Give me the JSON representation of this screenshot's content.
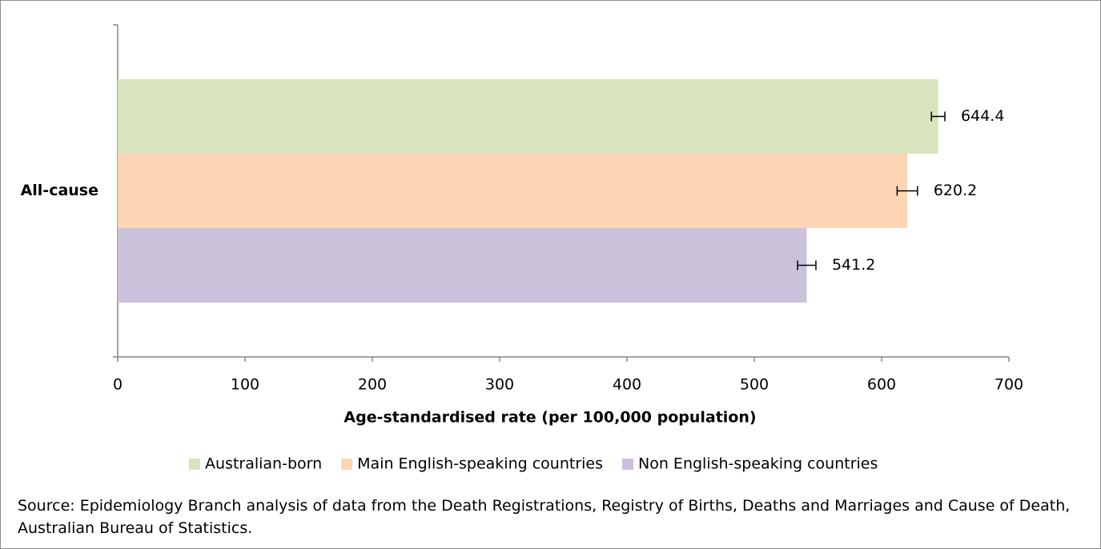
{
  "chart_data": {
    "type": "bar",
    "orientation": "horizontal",
    "categories": [
      "All-cause"
    ],
    "series": [
      {
        "name": "Australian-born",
        "color": "#d7e4bd",
        "values": [
          644.4
        ],
        "errors": [
          5.3
        ]
      },
      {
        "name": "Main English-speaking countries",
        "color": "#fcd5b5",
        "values": [
          620.2
        ],
        "errors": [
          8
        ]
      },
      {
        "name": "Non English-speaking countries",
        "color": "#ccc1da",
        "values": [
          541.2
        ],
        "errors": [
          7.2
        ]
      }
    ],
    "xlabel": "Age-standardised rate (per 100,000 population)",
    "xlim": [
      0,
      700
    ],
    "xticks": [
      0,
      100,
      200,
      300,
      400,
      500,
      600,
      700
    ],
    "grid": false,
    "legend": "bottom",
    "source": "Source: Epidemiology Branch analysis of data from the Death Registrations, Registry of Births, Deaths and Marriages and Cause of Death, Australian Bureau of Statistics."
  }
}
